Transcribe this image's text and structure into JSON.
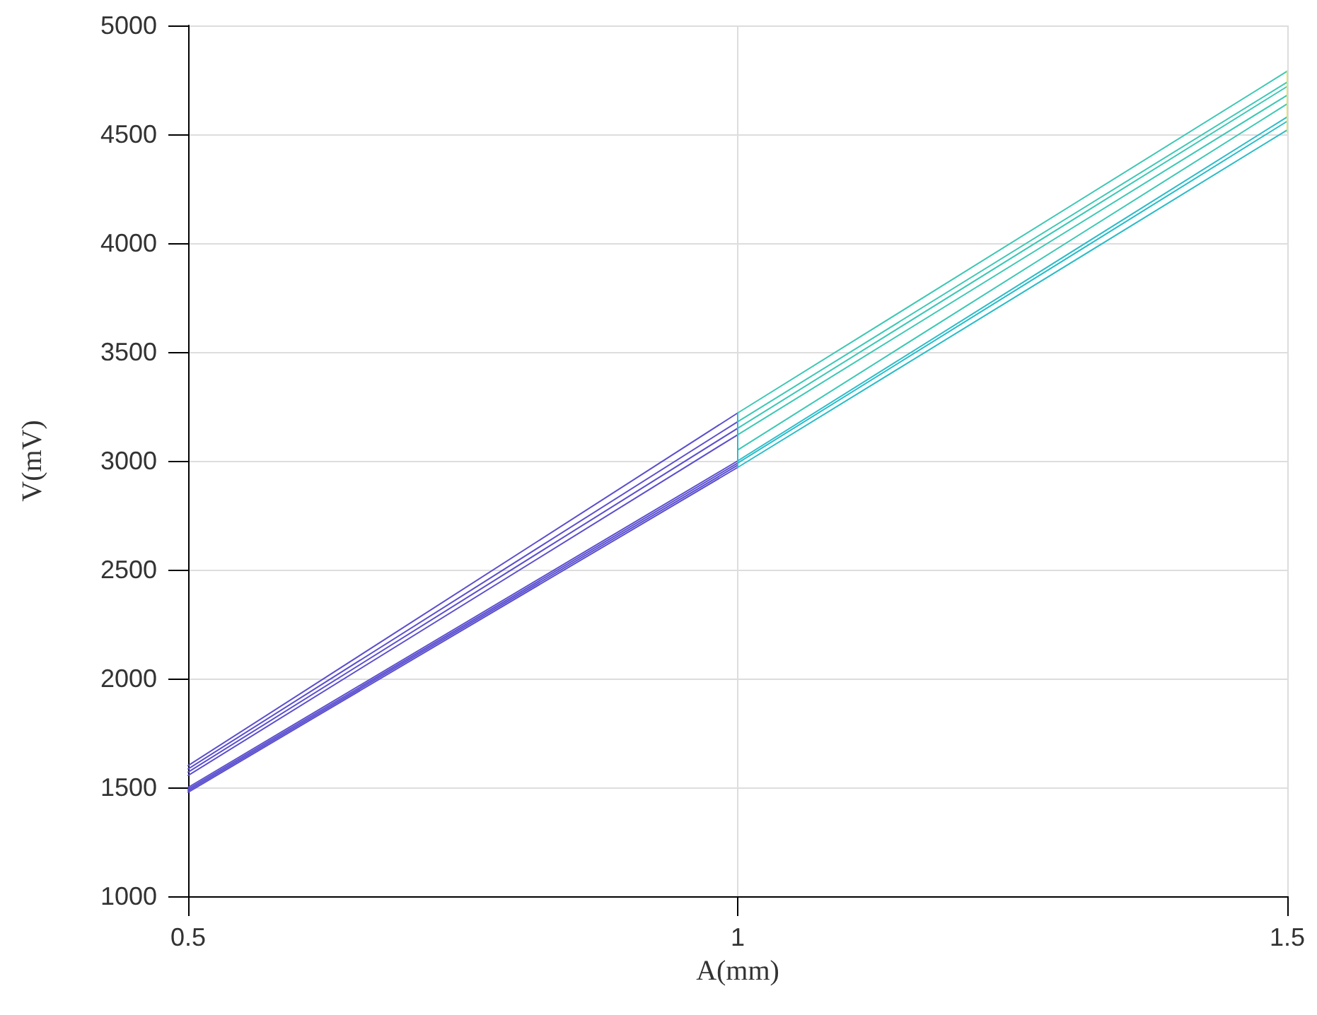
{
  "chart_data": {
    "type": "line",
    "xlabel": "A(mm)",
    "ylabel": "V(mV)",
    "xlim": [
      0.5,
      1.5
    ],
    "xticks": [
      0.5,
      1,
      1.5
    ],
    "ylim": [
      1000,
      5000
    ],
    "yticks": [
      1000,
      1500,
      2000,
      2500,
      3000,
      3500,
      4000,
      4500,
      5000
    ],
    "grid": true,
    "marker": "none",
    "line_style": "solid",
    "series": [
      {
        "color": "#5b4fcf",
        "x": [
          0.5,
          1
        ],
        "values": [
          1600,
          3220
        ]
      },
      {
        "color": "#5b4fcf",
        "x": [
          0.5,
          1
        ],
        "values": [
          1585,
          3180
        ]
      },
      {
        "color": "#5b4fcf",
        "x": [
          0.5,
          1
        ],
        "values": [
          1570,
          3150
        ]
      },
      {
        "color": "#5b4fcf",
        "x": [
          0.5,
          1
        ],
        "values": [
          1555,
          3120
        ]
      },
      {
        "color": "#5b4fcf",
        "x": [
          0.5,
          1
        ],
        "values": [
          1500,
          3000
        ]
      },
      {
        "color": "#5b4fcf",
        "x": [
          0.5,
          1
        ],
        "values": [
          1492,
          2990
        ]
      },
      {
        "color": "#5b4fcf",
        "x": [
          0.5,
          1
        ],
        "values": [
          1485,
          2980
        ]
      },
      {
        "color": "#5b4fcf",
        "x": [
          0.5,
          1
        ],
        "values": [
          1478,
          2970
        ]
      },
      {
        "color": "#2bbcc8",
        "x": [
          1,
          1.5
        ],
        "values": [
          2970,
          4520
        ]
      },
      {
        "color": "#2bbcc8",
        "x": [
          1,
          1.5
        ],
        "values": [
          2990,
          4560
        ]
      },
      {
        "color": "#2bbcc8",
        "x": [
          1,
          1.5
        ],
        "values": [
          3000,
          4580
        ]
      },
      {
        "color": "#3cc8b4",
        "x": [
          1,
          1.5
        ],
        "values": [
          3050,
          4640
        ]
      },
      {
        "color": "#3cc8b4",
        "x": [
          1,
          1.5
        ],
        "values": [
          3120,
          4680
        ]
      },
      {
        "color": "#3cc8b4",
        "x": [
          1,
          1.5
        ],
        "values": [
          3150,
          4720
        ]
      },
      {
        "color": "#3cc8b4",
        "x": [
          1,
          1.5
        ],
        "values": [
          3180,
          4740
        ]
      },
      {
        "color": "#3cc8b4",
        "x": [
          1,
          1.5
        ],
        "values": [
          3220,
          4790
        ]
      },
      {
        "color": "#2bbcc8",
        "x": [
          1,
          1
        ],
        "values": [
          2970,
          3220
        ]
      },
      {
        "color": "#e3e36a",
        "x": [
          1.5,
          1.5
        ],
        "values": [
          4510,
          4790
        ]
      }
    ]
  }
}
